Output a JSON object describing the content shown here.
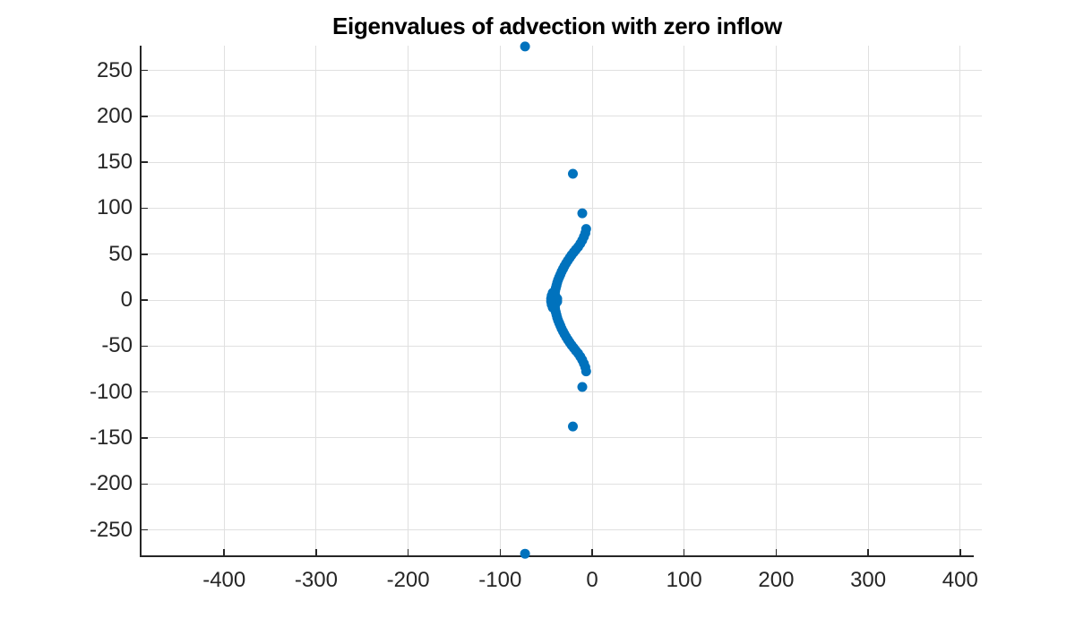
{
  "chart": {
    "title": "Eigenvalues of advection with zero inflow"
  },
  "colors": {
    "marker": "#0072BD",
    "axis": "#262626",
    "grid": "#e0e0e0",
    "title": "#000000",
    "background": "#ffffff"
  },
  "chart_data": {
    "type": "scatter",
    "title": "Eigenvalues of advection with zero inflow",
    "xlabel": "",
    "ylabel": "",
    "xlim": [
      -490.8,
      414.8
    ],
    "ylim": [
      -278.7,
      276.9
    ],
    "xticks": [
      -400,
      -300,
      -200,
      -100,
      0,
      100,
      200,
      300,
      400
    ],
    "yticks": [
      -250,
      -200,
      -150,
      -100,
      -50,
      0,
      50,
      100,
      150,
      200,
      250
    ],
    "grid": true,
    "legend": null,
    "marker": {
      "shape": "filled-circle",
      "radius_px": 5.5
    },
    "points": [
      [
        -73,
        276
      ],
      [
        -21,
        137.5
      ],
      [
        -10.7,
        94.5
      ],
      [
        -6.5,
        77.5
      ],
      [
        -7.4,
        73
      ],
      [
        -9,
        69
      ],
      [
        -10.8,
        65
      ],
      [
        -12.9,
        61.5
      ],
      [
        -15.2,
        58
      ],
      [
        -17.7,
        55
      ],
      [
        -20.1,
        52
      ],
      [
        -22.4,
        49
      ],
      [
        -24.5,
        46
      ],
      [
        -26.5,
        43
      ],
      [
        -28.4,
        40
      ],
      [
        -30.1,
        37
      ],
      [
        -31.7,
        34
      ],
      [
        -33.2,
        31
      ],
      [
        -34.5,
        28
      ],
      [
        -35.8,
        25
      ],
      [
        -37,
        22
      ],
      [
        -38,
        19
      ],
      [
        -38.8,
        16
      ],
      [
        -39.6,
        13
      ],
      [
        -40.2,
        10
      ],
      [
        -40.5,
        7
      ],
      [
        -39.8,
        4
      ],
      [
        -38,
        1.5
      ],
      [
        -44.6,
        1.5
      ],
      [
        -44,
        4.8
      ],
      [
        -42.9,
        8
      ],
      [
        -73,
        -276
      ],
      [
        -21,
        -137.5
      ],
      [
        -10.7,
        -94.5
      ],
      [
        -6.5,
        -77.5
      ],
      [
        -7.4,
        -73
      ],
      [
        -9,
        -69
      ],
      [
        -10.8,
        -65
      ],
      [
        -12.9,
        -61.5
      ],
      [
        -15.2,
        -58
      ],
      [
        -17.7,
        -55
      ],
      [
        -20.1,
        -52
      ],
      [
        -22.4,
        -49
      ],
      [
        -24.5,
        -46
      ],
      [
        -26.5,
        -43
      ],
      [
        -28.4,
        -40
      ],
      [
        -30.1,
        -37
      ],
      [
        -31.7,
        -34
      ],
      [
        -33.2,
        -31
      ],
      [
        -34.5,
        -28
      ],
      [
        -35.8,
        -25
      ],
      [
        -37,
        -22
      ],
      [
        -38,
        -19
      ],
      [
        -38.8,
        -16
      ],
      [
        -39.6,
        -13
      ],
      [
        -40.2,
        -10
      ],
      [
        -40.5,
        -7
      ],
      [
        -39.8,
        -4
      ],
      [
        -38,
        -1.5
      ],
      [
        -44.6,
        -1.5
      ],
      [
        -44,
        -4.8
      ],
      [
        -42.9,
        -8
      ]
    ]
  }
}
